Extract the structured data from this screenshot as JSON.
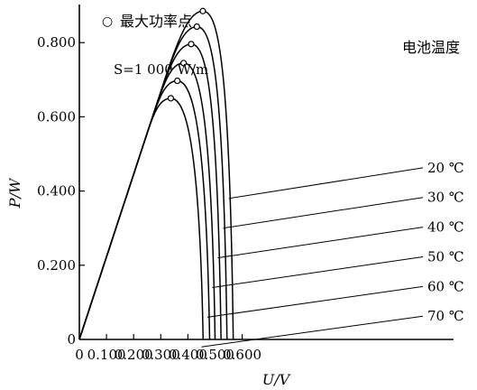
{
  "chart_data": {
    "type": "line",
    "xlabel": "U/V",
    "ylabel": "P/W",
    "xlim": [
      0,
      0.6
    ],
    "ylim": [
      0,
      0.9
    ],
    "xticks": [
      0,
      0.1,
      0.2,
      0.3,
      0.4,
      0.5,
      0.6
    ],
    "xtick_labels": [
      "0",
      "0.100",
      "0.200",
      "0.300",
      "0.400",
      "0.500",
      "0.600"
    ],
    "yticks": [
      0,
      0.2,
      0.4,
      0.6,
      0.8
    ],
    "ytick_labels": [
      "0",
      "0.200",
      "0.400",
      "0.600",
      "0.800"
    ],
    "legend": {
      "marker": "○",
      "label": "最大功率点",
      "placement": "top-left"
    },
    "condition_label": "S=1 000 W/m",
    "series_group_title": "电池温度",
    "common_slope": 2.225,
    "series": [
      {
        "name": "20 ℃",
        "mpp": [
          0.455,
          0.885
        ],
        "voc": 0.567
      },
      {
        "name": "30 ℃",
        "mpp": [
          0.433,
          0.843
        ],
        "voc": 0.544
      },
      {
        "name": "40 ℃",
        "mpp": [
          0.412,
          0.796
        ],
        "voc": 0.522
      },
      {
        "name": "50 ℃",
        "mpp": [
          0.384,
          0.745
        ],
        "voc": 0.5
      },
      {
        "name": "60 ℃",
        "mpp": [
          0.361,
          0.697
        ],
        "voc": 0.48
      },
      {
        "name": "70 ℃",
        "mpp": [
          0.337,
          0.65
        ],
        "voc": 0.456
      }
    ]
  }
}
